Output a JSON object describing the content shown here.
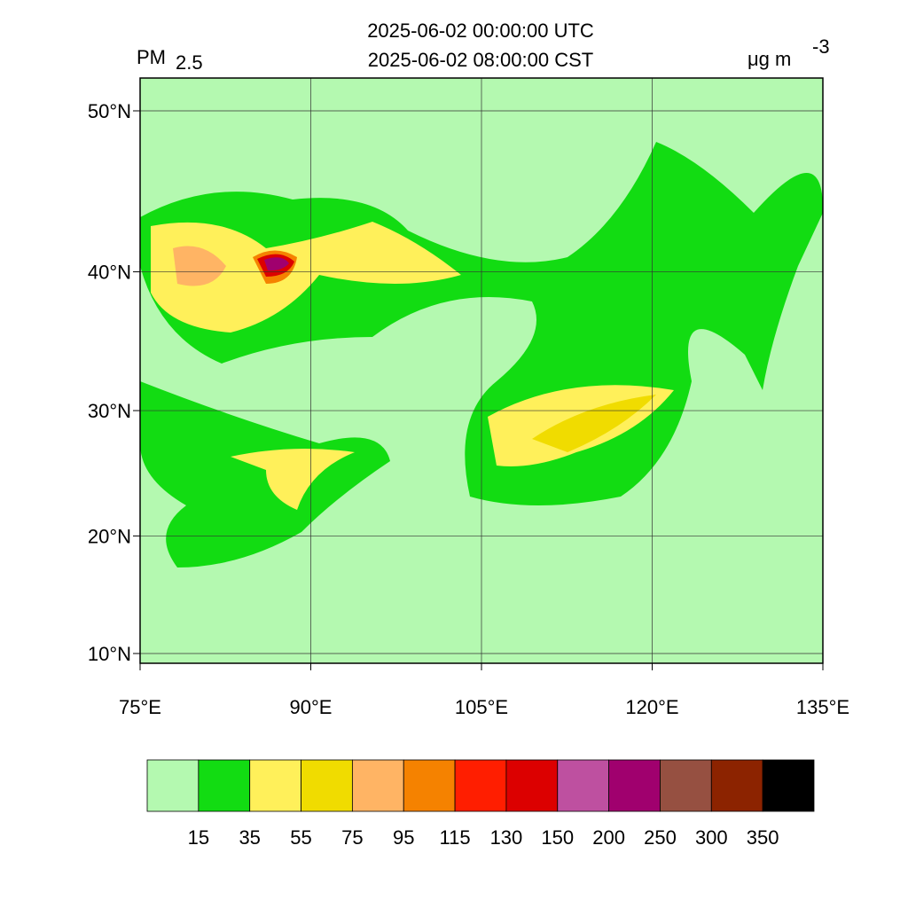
{
  "header": {
    "line1": "2025-06-02 00:00:00 UTC",
    "line2": "2025-06-02 08:00:00 CST",
    "variable": "PM",
    "variable_sub": "2.5",
    "unit": "μg m",
    "unit_sup": "-3"
  },
  "map": {
    "lon_ticks": [
      {
        "value": 75,
        "label": "75°E"
      },
      {
        "value": 90,
        "label": "90°E"
      },
      {
        "value": 105,
        "label": "105°E"
      },
      {
        "value": 120,
        "label": "120°E"
      },
      {
        "value": 135,
        "label": "135°E"
      }
    ],
    "lat_ticks": [
      {
        "value": 10,
        "label": "10°N"
      },
      {
        "value": 20,
        "label": "20°N"
      },
      {
        "value": 30,
        "label": "30°N"
      },
      {
        "value": 40,
        "label": "40°N"
      },
      {
        "value": 50,
        "label": "50°N"
      }
    ]
  },
  "colorbar": {
    "levels": [
      15,
      35,
      55,
      75,
      95,
      115,
      130,
      150,
      200,
      250,
      300,
      350
    ],
    "colors": [
      "#b4f9b0",
      "#12dc12",
      "#fff05a",
      "#f0dc00",
      "#ffb464",
      "#f58200",
      "#ff1e00",
      "#dc0000",
      "#be50a0",
      "#a0006e",
      "#965041",
      "#8c2300",
      "#000000"
    ]
  }
}
